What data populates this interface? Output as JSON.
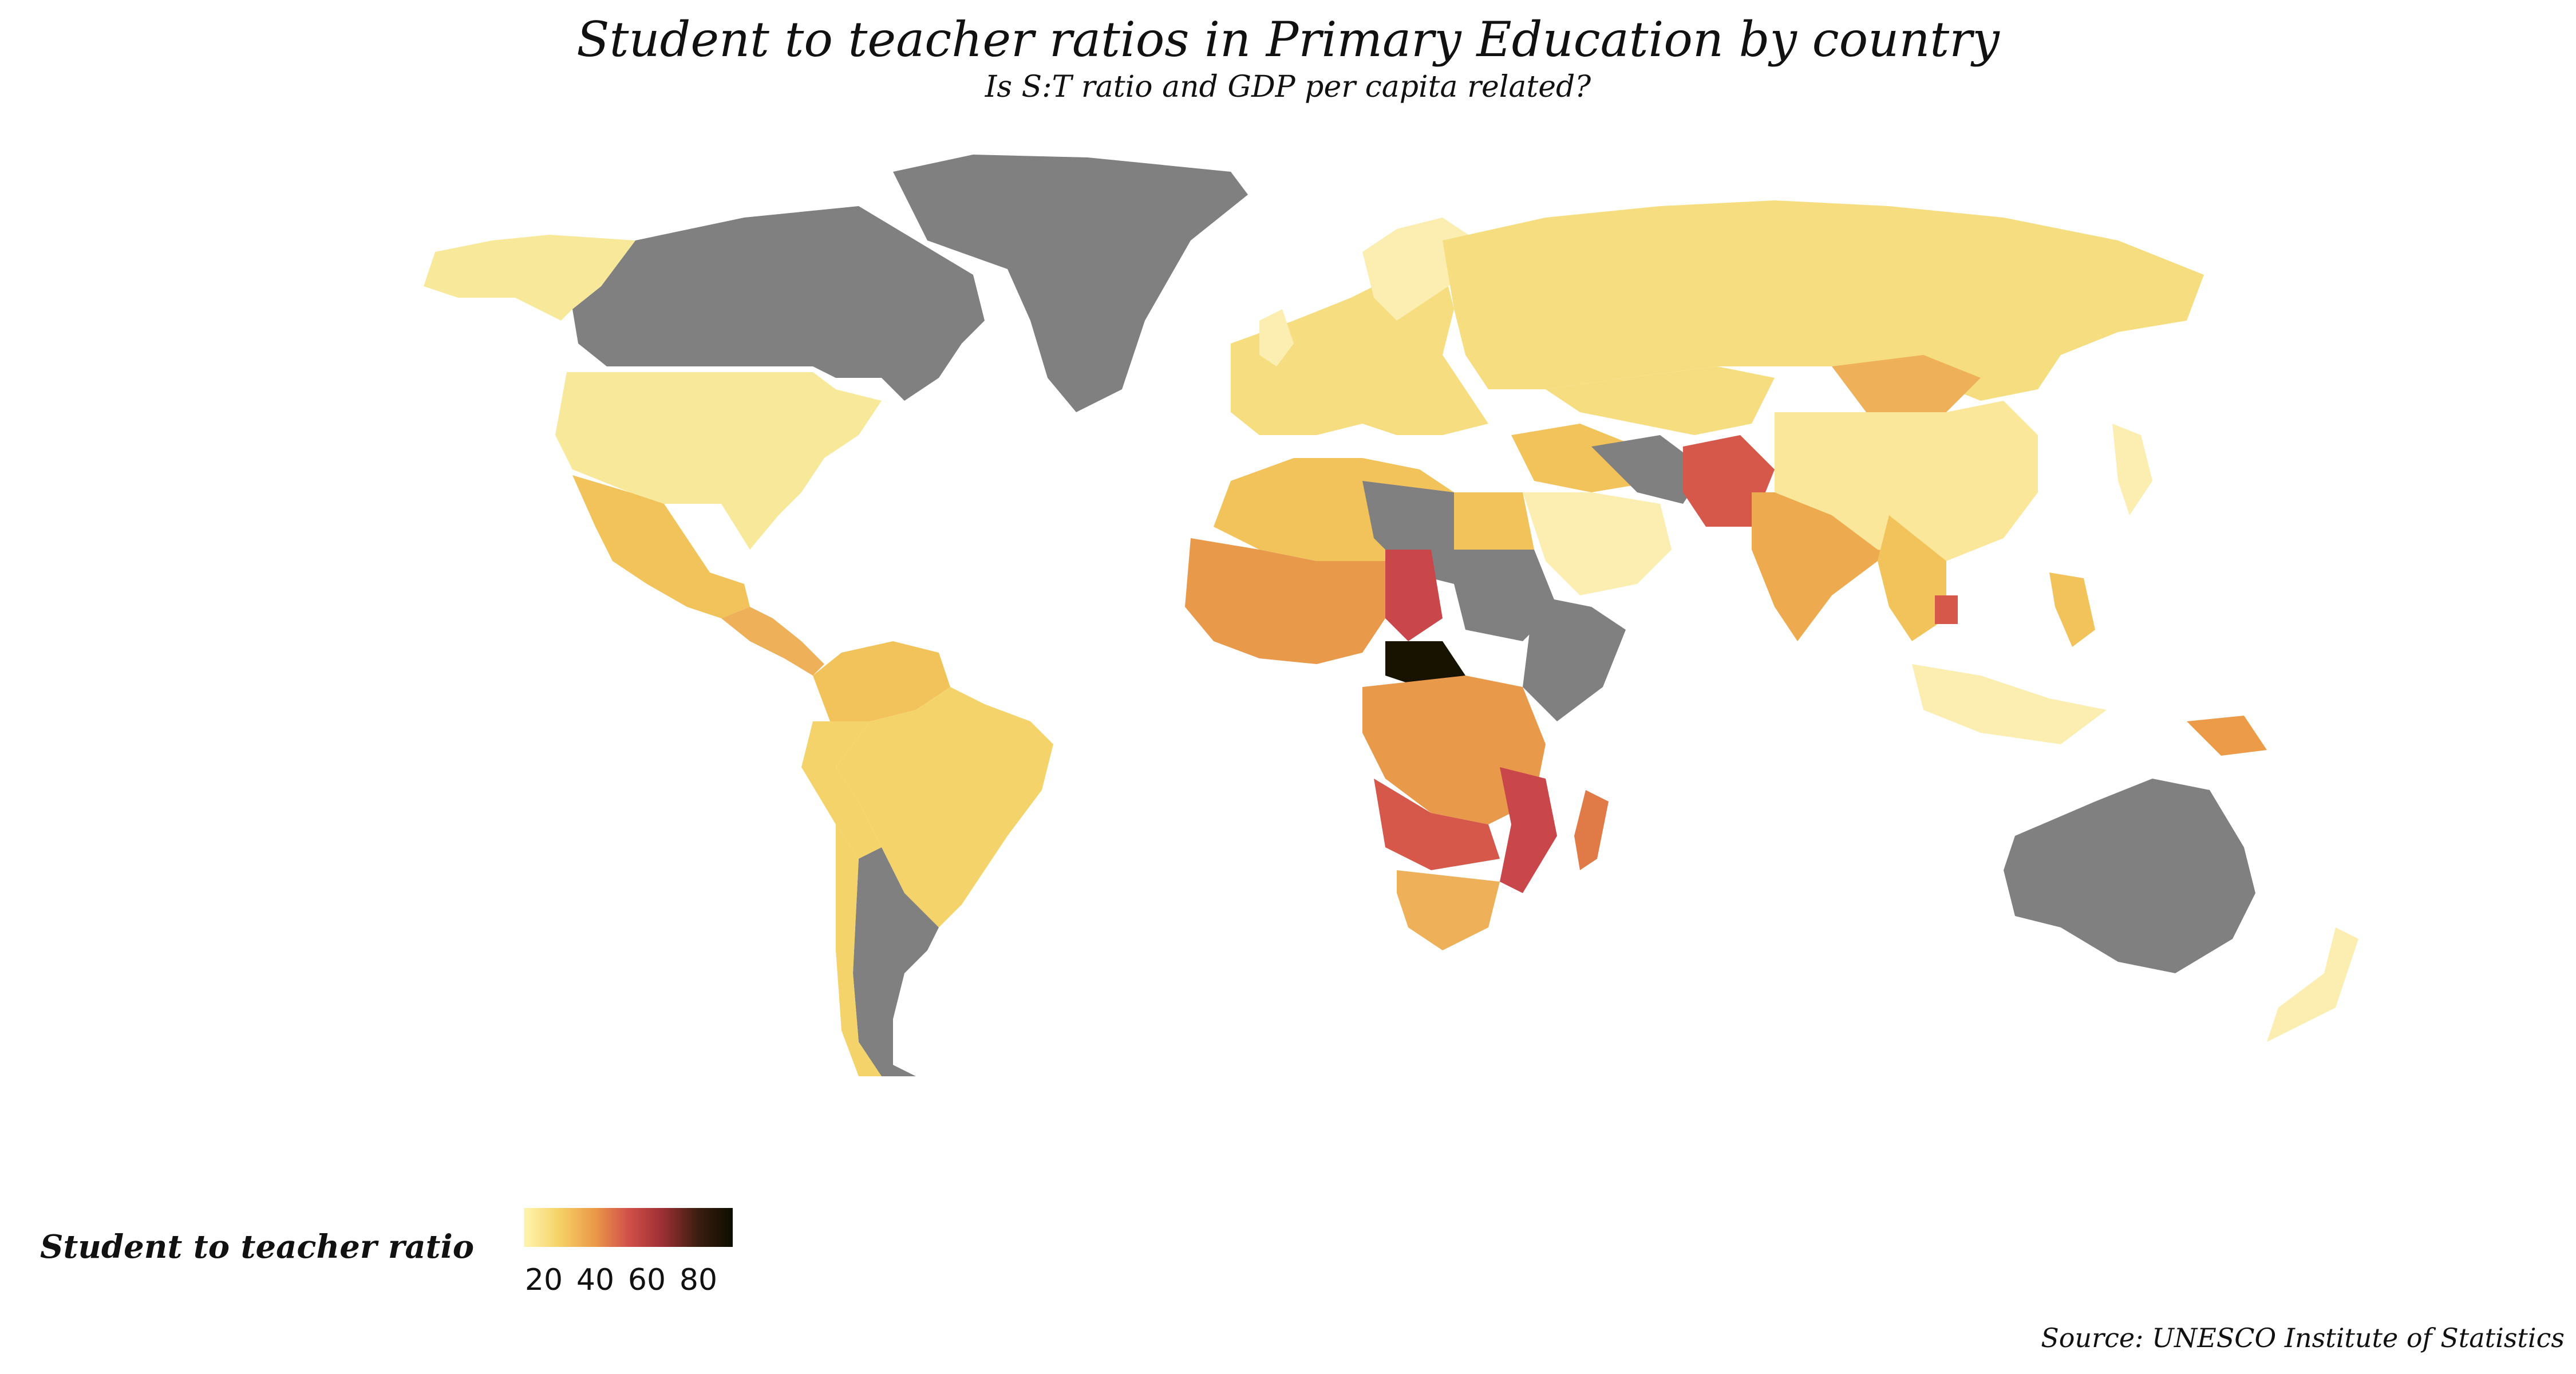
{
  "title": "Student to teacher ratios in Primary Education by country",
  "subtitle": "Is S:T ratio and GDP per capita related?",
  "legend": {
    "title": "Student to teacher ratio",
    "ticks": [
      "20",
      "40",
      "60",
      "80"
    ],
    "scale": [
      "#fff5b0",
      "#f6d268",
      "#ec9b48",
      "#d2504a",
      "#9b2f33",
      "#3a1e10",
      "#0d0d00"
    ],
    "missing_color": "#808080"
  },
  "source": "Source: UNESCO Institute of Statistics"
}
